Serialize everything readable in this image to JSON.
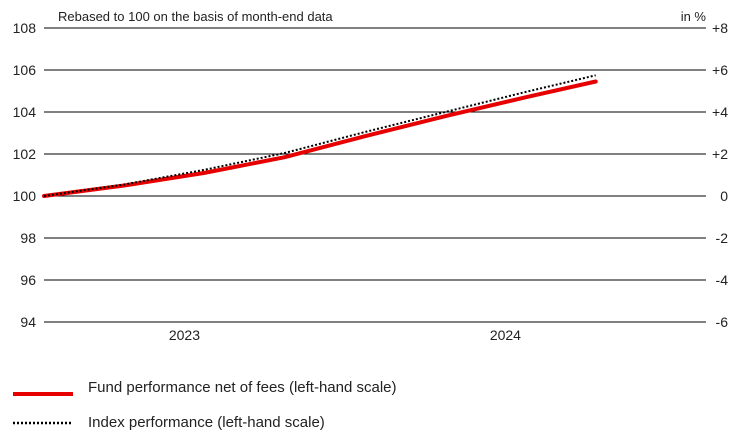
{
  "chart_data": {
    "type": "line",
    "note": "Rebased to 100 on the basis of month-end data",
    "right_unit": "in %",
    "left_axis": {
      "ylim": [
        94,
        108
      ],
      "ticks": [
        94,
        96,
        98,
        100,
        102,
        104,
        106,
        108
      ],
      "tick_labels": [
        "94",
        "96",
        "98",
        "100",
        "102",
        "104",
        "106",
        "108"
      ]
    },
    "right_axis": {
      "ylim": [
        -6,
        8
      ],
      "ticks": [
        -6,
        -4,
        -2,
        0,
        2,
        4,
        6,
        8
      ],
      "tick_labels": [
        "-6",
        "-4",
        "-2",
        "0",
        "+2",
        "+4",
        "+6",
        "+8"
      ]
    },
    "x_axis": {
      "labels": [
        "2023",
        "2024"
      ],
      "label_positions": [
        7,
        23
      ]
    },
    "x_range": [
      0,
      33
    ],
    "grid": true,
    "series": [
      {
        "name": "Fund performance net of fees (left-hand scale)",
        "color": "#e60000",
        "style": "solid",
        "x": [
          0,
          4,
          8,
          12,
          16,
          20,
          24,
          27.5
        ],
        "values": [
          100.0,
          100.5,
          101.1,
          101.85,
          102.85,
          103.8,
          104.7,
          105.45
        ]
      },
      {
        "name": "Index performance (left-hand scale)",
        "color": "#000000",
        "style": "dotted",
        "x": [
          0,
          4,
          8,
          12,
          16,
          20,
          24,
          27.5
        ],
        "values": [
          100.0,
          100.55,
          101.25,
          102.05,
          103.05,
          104.0,
          104.95,
          105.75
        ]
      }
    ]
  }
}
